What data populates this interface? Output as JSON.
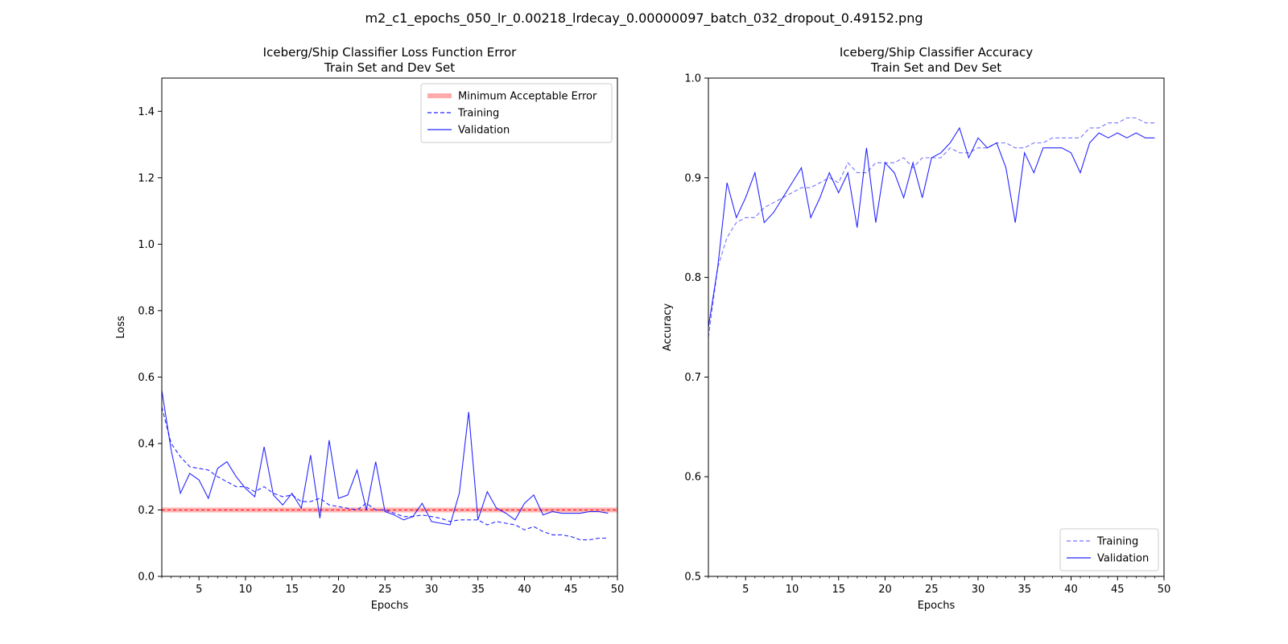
{
  "figure_title": "m2_c1_epochs_050_lr_0.00218_lrdecay_0.00000097_batch_032_dropout_0.49152.png",
  "colors": {
    "series": "#0000ff",
    "threshold": "#ff0000",
    "threshold_band": "#ffaaaa"
  },
  "chart_data": [
    {
      "type": "line",
      "title": [
        "Iceberg/Ship Classifier Loss Function Error",
        "Train Set and Dev Set"
      ],
      "xlabel": "Epochs",
      "ylabel": "Loss",
      "xlim": [
        1,
        50
      ],
      "ylim": [
        0,
        1.5
      ],
      "xticks": [
        5,
        10,
        15,
        20,
        25,
        30,
        35,
        40,
        45,
        50
      ],
      "yticks": [
        0.0,
        0.2,
        0.4,
        0.6,
        0.8,
        1.0,
        1.2,
        1.4
      ],
      "ytick_labels": [
        "0.0",
        "0.2",
        "0.4",
        "0.6",
        "0.8",
        "1.0",
        "1.2",
        "1.4"
      ],
      "legend_position": "top-right",
      "threshold": {
        "name": "Minimum Acceptable Error",
        "value": 0.2
      },
      "x": [
        1,
        2,
        3,
        4,
        5,
        6,
        7,
        8,
        9,
        10,
        11,
        12,
        13,
        14,
        15,
        16,
        17,
        18,
        19,
        20,
        21,
        22,
        23,
        24,
        25,
        26,
        27,
        28,
        29,
        30,
        31,
        32,
        33,
        34,
        35,
        36,
        37,
        38,
        39,
        40,
        41,
        42,
        43,
        44,
        45,
        46,
        47,
        48,
        49
      ],
      "series": [
        {
          "name": "Training",
          "style": "dashed",
          "values": [
            0.51,
            0.4,
            0.36,
            0.33,
            0.325,
            0.32,
            0.3,
            0.285,
            0.27,
            0.27,
            0.255,
            0.27,
            0.25,
            0.24,
            0.245,
            0.225,
            0.225,
            0.235,
            0.215,
            0.21,
            0.205,
            0.2,
            0.22,
            0.2,
            0.2,
            0.19,
            0.18,
            0.18,
            0.185,
            0.18,
            0.175,
            0.165,
            0.17,
            0.17,
            0.17,
            0.155,
            0.165,
            0.16,
            0.155,
            0.14,
            0.15,
            0.135,
            0.125,
            0.125,
            0.12,
            0.11,
            0.11,
            0.115,
            0.115
          ]
        },
        {
          "name": "Validation",
          "style": "solid",
          "values": [
            0.56,
            0.38,
            0.25,
            0.31,
            0.29,
            0.235,
            0.325,
            0.345,
            0.3,
            0.265,
            0.24,
            0.39,
            0.245,
            0.215,
            0.25,
            0.205,
            0.365,
            0.175,
            0.41,
            0.235,
            0.245,
            0.32,
            0.2,
            0.345,
            0.195,
            0.185,
            0.17,
            0.18,
            0.22,
            0.165,
            0.16,
            0.155,
            0.25,
            0.495,
            0.17,
            0.255,
            0.205,
            0.19,
            0.17,
            0.22,
            0.245,
            0.185,
            0.195,
            0.19,
            0.19,
            0.19,
            0.195,
            0.195,
            0.19
          ]
        }
      ]
    },
    {
      "type": "line",
      "title": [
        "Iceberg/Ship Classifier Accuracy",
        "Train Set and Dev Set"
      ],
      "xlabel": "Epochs",
      "ylabel": "Accuracy",
      "xlim": [
        1,
        50
      ],
      "ylim": [
        0.5,
        1.0
      ],
      "xticks": [
        5,
        10,
        15,
        20,
        25,
        30,
        35,
        40,
        45,
        50
      ],
      "yticks": [
        0.5,
        0.6,
        0.7,
        0.8,
        0.9,
        1.0
      ],
      "ytick_labels": [
        "0.5",
        "0.6",
        "0.7",
        "0.8",
        "0.9",
        "1.0"
      ],
      "legend_position": "bottom-right",
      "x": [
        1,
        2,
        3,
        4,
        5,
        6,
        7,
        8,
        9,
        10,
        11,
        12,
        13,
        14,
        15,
        16,
        17,
        18,
        19,
        20,
        21,
        22,
        23,
        24,
        25,
        26,
        27,
        28,
        29,
        30,
        31,
        32,
        33,
        34,
        35,
        36,
        37,
        38,
        39,
        40,
        41,
        42,
        43,
        44,
        45,
        46,
        47,
        48,
        49
      ],
      "series": [
        {
          "name": "Training",
          "style": "dashed",
          "values": [
            0.74,
            0.81,
            0.84,
            0.855,
            0.86,
            0.86,
            0.87,
            0.875,
            0.88,
            0.885,
            0.89,
            0.89,
            0.895,
            0.9,
            0.895,
            0.915,
            0.905,
            0.905,
            0.915,
            0.915,
            0.915,
            0.92,
            0.91,
            0.92,
            0.92,
            0.92,
            0.93,
            0.925,
            0.925,
            0.93,
            0.93,
            0.935,
            0.935,
            0.93,
            0.93,
            0.935,
            0.935,
            0.94,
            0.94,
            0.94,
            0.94,
            0.95,
            0.95,
            0.955,
            0.955,
            0.96,
            0.96,
            0.955,
            0.955
          ]
        },
        {
          "name": "Validation",
          "style": "solid",
          "values": [
            0.75,
            0.81,
            0.895,
            0.86,
            0.88,
            0.905,
            0.855,
            0.865,
            0.88,
            0.895,
            0.91,
            0.86,
            0.88,
            0.905,
            0.885,
            0.905,
            0.85,
            0.93,
            0.855,
            0.915,
            0.905,
            0.88,
            0.915,
            0.88,
            0.92,
            0.925,
            0.935,
            0.95,
            0.92,
            0.94,
            0.93,
            0.935,
            0.91,
            0.855,
            0.925,
            0.905,
            0.93,
            0.93,
            0.93,
            0.925,
            0.905,
            0.935,
            0.945,
            0.94,
            0.945,
            0.94,
            0.945,
            0.94,
            0.94
          ]
        }
      ]
    }
  ]
}
